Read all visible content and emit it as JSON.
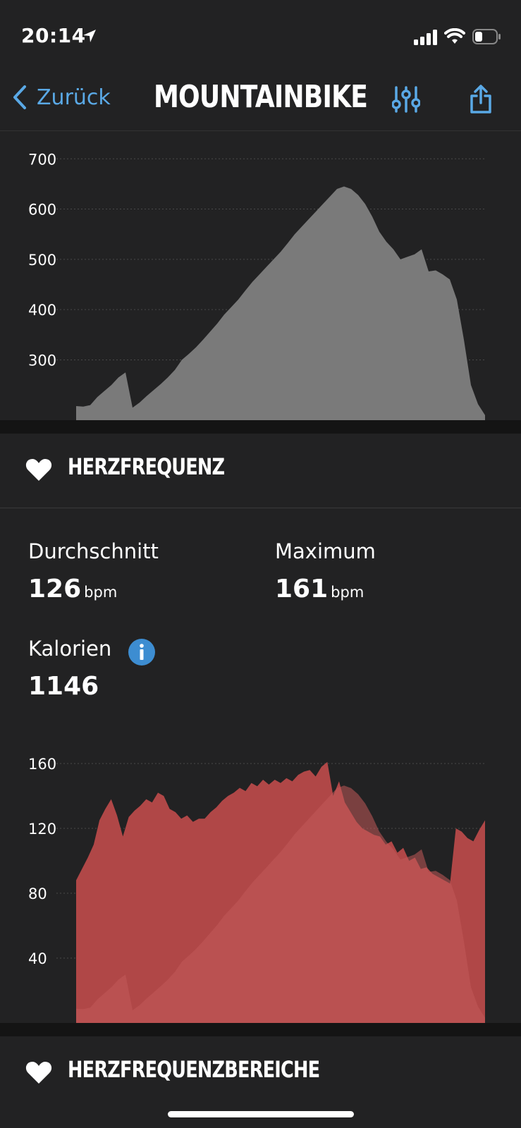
{
  "status_bar": {
    "time": "20:14"
  },
  "nav": {
    "back_label": "Zurück",
    "title": "MOUNTAINBIKE"
  },
  "elevation_chart": {
    "chart_data": {
      "type": "area",
      "ylim": [
        180,
        720
      ],
      "yticks": [
        700,
        600,
        500,
        400,
        300
      ],
      "grid": true,
      "series": [
        {
          "values": [
            208,
            207,
            210,
            226,
            238,
            250,
            265,
            275,
            205,
            215,
            228,
            240,
            252,
            265,
            280,
            300,
            312,
            325,
            340,
            356,
            372,
            390,
            405,
            420,
            438,
            455,
            470,
            485,
            500,
            515,
            532,
            550,
            565,
            580,
            595,
            610,
            625,
            640,
            645,
            640,
            628,
            610,
            585,
            555,
            535,
            520,
            500,
            505,
            510,
            520,
            476,
            478,
            470,
            460,
            420,
            340,
            250,
            212,
            190
          ]
        }
      ]
    }
  },
  "hr_section": {
    "title": "HERZFREQUENZ",
    "avg_label": "Durchschnitt",
    "avg_value": "126",
    "avg_unit": "bpm",
    "max_label": "Maximum",
    "max_value": "161",
    "max_unit": "bpm",
    "cal_label": "Kalorien",
    "cal_value": "1146"
  },
  "hr_chart": {
    "chart_data": {
      "type": "area",
      "ylim": [
        0,
        170
      ],
      "yticks": [
        160,
        120,
        80,
        40
      ],
      "grid": true,
      "series": [
        {
          "values": [
            88,
            95,
            102,
            110,
            125,
            132,
            138,
            128,
            115,
            127,
            131,
            134,
            138,
            136,
            142,
            140,
            132,
            130,
            126,
            128,
            124,
            126,
            126,
            130,
            133,
            137,
            140,
            142,
            145,
            143,
            148,
            146,
            150,
            147,
            150,
            148,
            151,
            149,
            153,
            155,
            156,
            152,
            158,
            161,
            140,
            149,
            136,
            130,
            124,
            120,
            118,
            116,
            115,
            110,
            112,
            105,
            108,
            100,
            102,
            95,
            96,
            92,
            90,
            88,
            86,
            120,
            118,
            114,
            112,
            119,
            125
          ]
        }
      ],
      "overlay_elevation_color": "#a84a4a",
      "colors": {
        "hr": "#b04747",
        "elevation": "#9a4242",
        "gap": "#5c5c5c"
      }
    }
  },
  "zones_section": {
    "title": "HERZFREQUENZBEREICHE"
  },
  "colors": {
    "accent": "#5aa9e6",
    "background": "#222223",
    "elevation_fill": "#7a7a7a",
    "hr_fill": "#b04747"
  },
  "icons": [
    "location-arrow-icon",
    "signal-icon",
    "wifi-icon",
    "battery-icon",
    "chevron-left-icon",
    "filter-sliders-icon",
    "share-icon",
    "heart-icon",
    "info-icon"
  ]
}
